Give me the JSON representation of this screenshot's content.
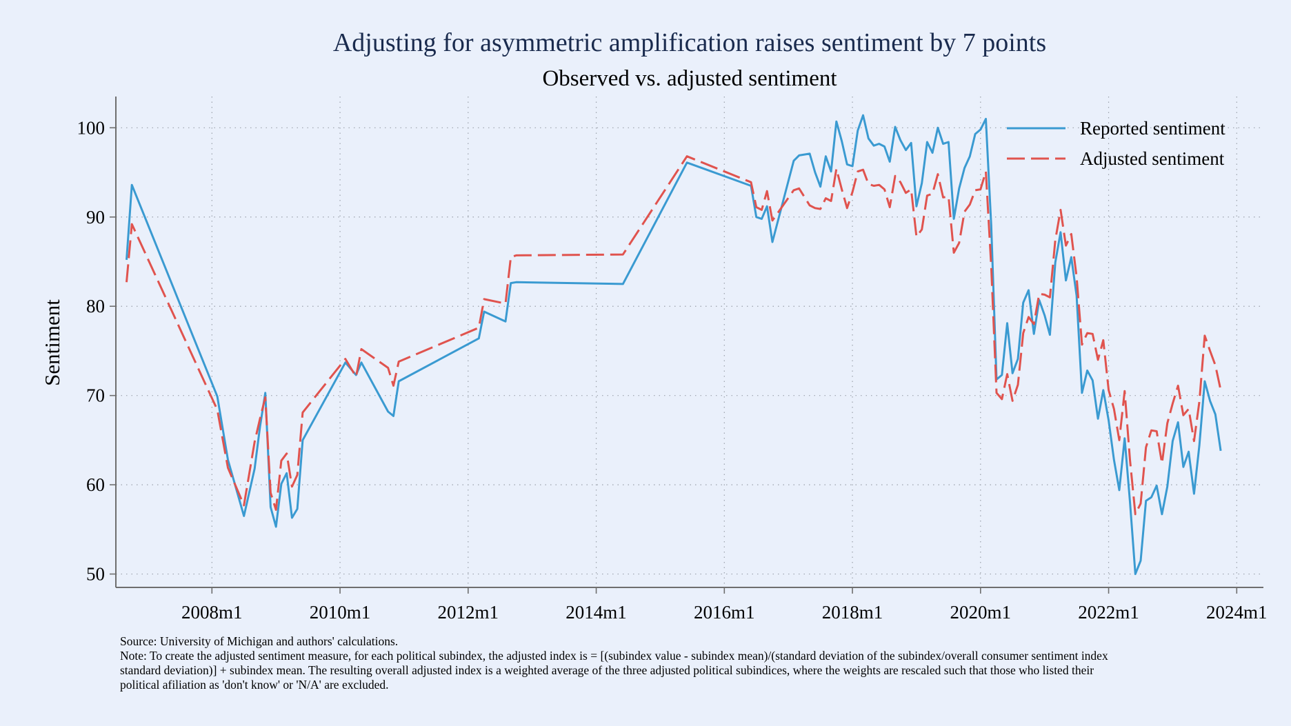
{
  "chart_data": {
    "type": "line",
    "title": "Adjusting for asymmetric amplification raises sentiment by 7 points",
    "subtitle": "Observed vs. adjusted sentiment",
    "xlabel": "",
    "ylabel": "Sentiment",
    "x_ticks": [
      "2008m1",
      "2010m1",
      "2012m1",
      "2014m1",
      "2016m1",
      "2018m1",
      "2020m1",
      "2022m1",
      "2024m1"
    ],
    "y_ticks": [
      50,
      60,
      70,
      80,
      90,
      100
    ],
    "xlim": [
      "2006m7",
      "2024m6"
    ],
    "ylim": [
      48.5,
      103.5
    ],
    "grid": true,
    "legend_position": "top-right",
    "series": [
      {
        "name": "Reported sentiment",
        "color": "#3a9ad1",
        "style": "solid",
        "x": [
          "2006m9",
          "2006m10",
          "2008m2",
          "2008m4",
          "2008m7",
          "2008m9",
          "2008m10",
          "2008m11",
          "2008m12",
          "2009m1",
          "2009m2",
          "2009m3",
          "2009m4",
          "2009m5",
          "2009m6",
          "2010m2",
          "2010m4",
          "2010m5",
          "2010m10",
          "2010m11",
          "2010m12",
          "2012m3",
          "2012m4",
          "2012m8",
          "2012m9",
          "2012m10",
          "2014m6",
          "2015m6",
          "2016m6",
          "2016m7",
          "2016m8",
          "2016m9",
          "2016m10",
          "2017m2",
          "2017m3",
          "2017m5",
          "2017m6",
          "2017m7",
          "2017m8",
          "2017m9",
          "2017m10",
          "2017m11",
          "2017m12",
          "2018m1",
          "2018m2",
          "2018m3",
          "2018m4",
          "2018m5",
          "2018m6",
          "2018m7",
          "2018m8",
          "2018m9",
          "2018m10",
          "2018m11",
          "2018m12",
          "2019m1",
          "2019m2",
          "2019m3",
          "2019m4",
          "2019m5",
          "2019m6",
          "2019m7",
          "2019m8",
          "2019m9",
          "2019m10",
          "2019m11",
          "2019m12",
          "2020m1",
          "2020m2",
          "2020m3",
          "2020m4",
          "2020m5",
          "2020m6",
          "2020m7",
          "2020m8",
          "2020m9",
          "2020m10",
          "2020m11",
          "2020m12",
          "2021m1",
          "2021m2",
          "2021m3",
          "2021m4",
          "2021m5",
          "2021m6",
          "2021m7",
          "2021m8",
          "2021m9",
          "2021m10",
          "2021m11",
          "2021m12",
          "2022m1",
          "2022m2",
          "2022m3",
          "2022m4",
          "2022m5",
          "2022m6",
          "2022m7",
          "2022m8",
          "2022m9",
          "2022m10",
          "2022m11",
          "2022m12",
          "2023m1",
          "2023m2",
          "2023m3",
          "2023m4",
          "2023m5",
          "2023m6",
          "2023m7",
          "2023m8",
          "2023m9",
          "2023m10"
        ],
        "y": [
          85.2,
          93.6,
          69.9,
          62.8,
          56.5,
          61.8,
          66.5,
          70.3,
          57.5,
          55.3,
          60.1,
          61.3,
          56.3,
          57.3,
          65.0,
          73.7,
          72.3,
          73.7,
          68.2,
          67.7,
          71.6,
          76.4,
          79.4,
          78.3,
          82.6,
          82.7,
          82.5,
          96.1,
          93.5,
          90.0,
          89.8,
          91.2,
          87.2,
          96.3,
          96.9,
          97.1,
          95.0,
          93.4,
          96.8,
          95.1,
          100.7,
          98.5,
          95.9,
          95.7,
          99.7,
          101.4,
          98.8,
          98.0,
          98.2,
          97.9,
          96.2,
          100.1,
          98.6,
          97.5,
          98.3,
          91.2,
          93.8,
          98.4,
          97.2,
          100.0,
          98.2,
          98.4,
          89.8,
          93.2,
          95.5,
          96.8,
          99.3,
          99.8,
          101.0,
          89.1,
          71.8,
          72.3,
          78.1,
          72.5,
          74.1,
          80.4,
          81.8,
          76.9,
          80.7,
          79.0,
          76.8,
          84.9,
          88.3,
          82.9,
          85.5,
          81.2,
          70.3,
          72.8,
          71.7,
          67.4,
          70.6,
          67.2,
          62.8,
          59.4,
          65.2,
          58.1,
          50.0,
          51.5,
          58.2,
          58.6,
          59.9,
          56.7,
          59.8,
          64.9,
          67.0,
          62.0,
          63.7,
          59.0,
          64.4,
          71.6,
          69.4,
          67.9,
          63.8
        ]
      },
      {
        "name": "Adjusted sentiment",
        "color": "#e0534e",
        "style": "dashed",
        "x": [
          "2006m9",
          "2006m10",
          "2008m2",
          "2008m4",
          "2008m7",
          "2008m9",
          "2008m10",
          "2008m11",
          "2008m12",
          "2009m1",
          "2009m2",
          "2009m3",
          "2009m4",
          "2009m5",
          "2009m6",
          "2010m2",
          "2010m4",
          "2010m5",
          "2010m10",
          "2010m11",
          "2010m12",
          "2012m3",
          "2012m4",
          "2012m8",
          "2012m9",
          "2012m10",
          "2014m6",
          "2015m6",
          "2016m6",
          "2016m7",
          "2016m8",
          "2016m9",
          "2016m10",
          "2017m2",
          "2017m3",
          "2017m5",
          "2017m6",
          "2017m7",
          "2017m8",
          "2017m9",
          "2017m10",
          "2017m11",
          "2017m12",
          "2018m1",
          "2018m2",
          "2018m3",
          "2018m4",
          "2018m5",
          "2018m6",
          "2018m7",
          "2018m8",
          "2018m9",
          "2018m10",
          "2018m11",
          "2018m12",
          "2019m1",
          "2019m2",
          "2019m3",
          "2019m4",
          "2019m5",
          "2019m6",
          "2019m7",
          "2019m8",
          "2019m9",
          "2019m10",
          "2019m11",
          "2019m12",
          "2020m1",
          "2020m2",
          "2020m3",
          "2020m4",
          "2020m5",
          "2020m6",
          "2020m7",
          "2020m8",
          "2020m9",
          "2020m10",
          "2020m11",
          "2020m12",
          "2021m1",
          "2021m2",
          "2021m3",
          "2021m4",
          "2021m5",
          "2021m6",
          "2021m7",
          "2021m8",
          "2021m9",
          "2021m10",
          "2021m11",
          "2021m12",
          "2022m1",
          "2022m2",
          "2022m3",
          "2022m4",
          "2022m5",
          "2022m6",
          "2022m7",
          "2022m8",
          "2022m9",
          "2022m10",
          "2022m11",
          "2022m12",
          "2023m1",
          "2023m2",
          "2023m3",
          "2023m4",
          "2023m5",
          "2023m6",
          "2023m7",
          "2023m8",
          "2023m9",
          "2023m10"
        ],
        "y": [
          82.7,
          89.2,
          68.4,
          61.9,
          57.7,
          64.8,
          67.4,
          69.8,
          59.1,
          57.2,
          62.7,
          63.5,
          59.8,
          61.1,
          68.1,
          74.1,
          72.1,
          75.2,
          73.1,
          71.1,
          73.8,
          77.6,
          80.8,
          80.3,
          85.5,
          85.7,
          85.8,
          96.8,
          93.9,
          91.1,
          90.8,
          92.9,
          89.6,
          93.0,
          93.2,
          91.3,
          91.0,
          90.9,
          92.1,
          91.8,
          95.4,
          93.1,
          91.0,
          92.8,
          95.1,
          95.3,
          93.7,
          93.5,
          93.6,
          93.1,
          91.1,
          94.6,
          93.9,
          92.7,
          93.1,
          87.8,
          88.6,
          92.4,
          92.6,
          94.8,
          92.2,
          92.3,
          86.0,
          87.1,
          90.6,
          91.4,
          93.0,
          93.1,
          95.1,
          84.5,
          70.3,
          69.6,
          72.4,
          69.4,
          71.2,
          77.0,
          78.8,
          78.0,
          81.4,
          81.3,
          81.0,
          87.4,
          90.8,
          86.8,
          88.1,
          83.3,
          75.7,
          77.0,
          76.9,
          74.0,
          76.2,
          70.6,
          68.5,
          65.0,
          70.5,
          62.8,
          56.7,
          57.9,
          64.2,
          66.1,
          66.0,
          62.4,
          66.9,
          69.1,
          71.1,
          67.8,
          68.5,
          64.9,
          69.3,
          76.7,
          75.0,
          73.4,
          70.6
        ]
      }
    ]
  },
  "notes": {
    "source": "Source: University of Michigan and authors' calculations.",
    "note_line1": "Note: To create the adjusted sentiment measure, for each political subindex, the adjusted index is = [(subindex value - subindex mean)/(standard deviation of the subindex/overall consumer sentiment index",
    "note_line2": "standard deviation)] + subindex mean. The resulting overall adjusted index is a weighted average of the three adjusted political subindices, where the weights are rescaled such that those who listed their",
    "note_line3": "political afiliation as 'don't know' or 'N/A' are excluded."
  }
}
